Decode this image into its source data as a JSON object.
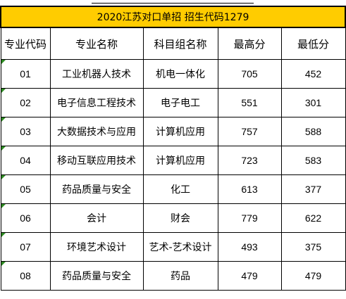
{
  "title": "2020江苏对口单招 招生代码1279",
  "headers": [
    "专业代码",
    "专业名称",
    "科目组名称",
    "最高分",
    "最低分"
  ],
  "rows": [
    {
      "code": "01",
      "major": "工业机器人技术",
      "group": "机电一体化",
      "max": "705",
      "min": "452"
    },
    {
      "code": "02",
      "major": "电子信息工程技术",
      "group": "电子电工",
      "max": "551",
      "min": "301"
    },
    {
      "code": "03",
      "major": "大数据技术与应用",
      "group": "计算机应用",
      "max": "757",
      "min": "588"
    },
    {
      "code": "04",
      "major": "移动互联应用技术",
      "group": "计算机应用",
      "max": "723",
      "min": "583"
    },
    {
      "code": "05",
      "major": "药品质量与安全",
      "group": "化工",
      "max": "613",
      "min": "377"
    },
    {
      "code": "06",
      "major": "会计",
      "group": "财会",
      "max": "779",
      "min": "622"
    },
    {
      "code": "07",
      "major": "环境艺术设计",
      "group": "艺术-艺术设计",
      "max": "493",
      "min": "375"
    },
    {
      "code": "08",
      "major": "药品质量与安全",
      "group": "药品",
      "max": "479",
      "min": "479"
    }
  ],
  "colors": {
    "title_background": "#ffcc00",
    "cell_flag": "#2e8b22",
    "border": "#000000"
  }
}
